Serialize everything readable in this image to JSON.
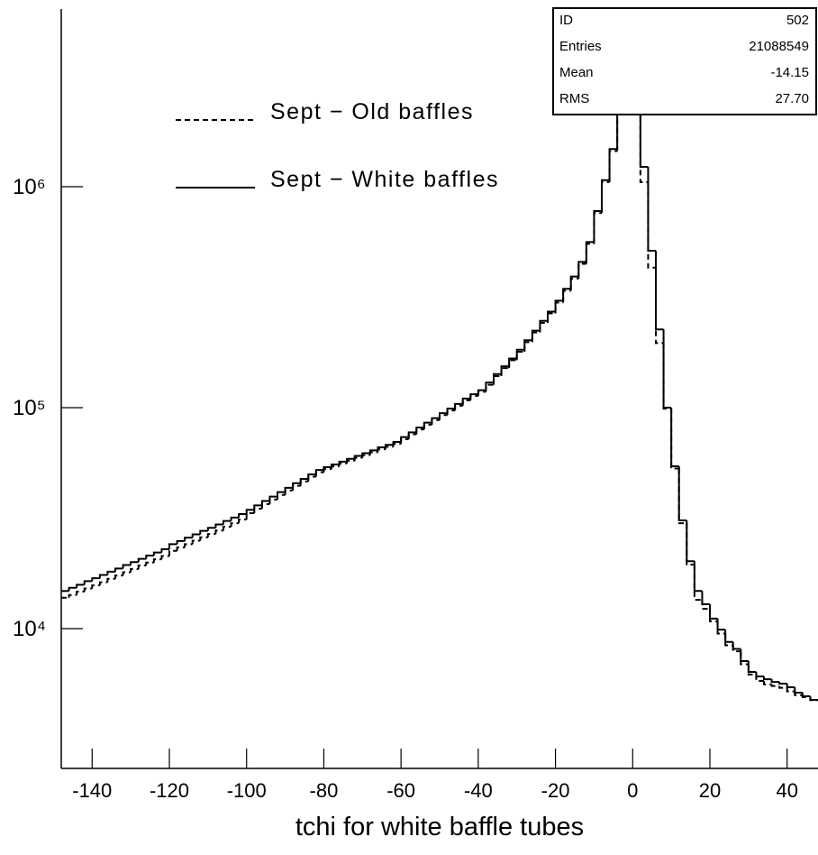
{
  "chart_data": {
    "type": "histogram",
    "x_label": "tchi for white baffle tubes",
    "bins": [
      -148,
      -146,
      -144,
      -142,
      -140,
      -138,
      -136,
      -134,
      -132,
      -130,
      -128,
      -126,
      -124,
      -122,
      -120,
      -118,
      -116,
      -114,
      -112,
      -110,
      -108,
      -106,
      -104,
      -102,
      -100,
      -98,
      -96,
      -94,
      -92,
      -90,
      -88,
      -86,
      -84,
      -82,
      -80,
      -78,
      -76,
      -74,
      -72,
      -70,
      -68,
      -66,
      -64,
      -62,
      -60,
      -58,
      -56,
      -54,
      -52,
      -50,
      -48,
      -46,
      -44,
      -42,
      -40,
      -38,
      -36,
      -34,
      -32,
      -30,
      -28,
      -26,
      -24,
      -22,
      -20,
      -18,
      -16,
      -14,
      -12,
      -10,
      -8,
      -6,
      -4,
      -2,
      0,
      2,
      4,
      6,
      8,
      10,
      12,
      14,
      16,
      18,
      20,
      22,
      24,
      26,
      28,
      30,
      32,
      34,
      36,
      38,
      40,
      42,
      44,
      46,
      48
    ],
    "series": [
      {
        "name": "Sept − Old baffles",
        "color": "#000000",
        "style": "dashed",
        "values": [
          13800,
          14200,
          14700,
          15200,
          15700,
          16200,
          16800,
          17400,
          18000,
          18600,
          19300,
          19900,
          20600,
          21300,
          22500,
          23300,
          24100,
          25000,
          25900,
          26800,
          27800,
          28900,
          30000,
          31200,
          33300,
          34900,
          36600,
          38400,
          40300,
          42200,
          44300,
          46400,
          48700,
          51000,
          52700,
          54200,
          55900,
          57500,
          59300,
          61000,
          62800,
          64800,
          66500,
          68600,
          72100,
          75800,
          79700,
          83800,
          87900,
          92500,
          97100,
          102000,
          108000,
          113000,
          118000,
          127000,
          139000,
          151000,
          164000,
          179000,
          198000,
          219000,
          242000,
          267000,
          299000,
          338000,
          384000,
          448000,
          551000,
          760000,
          1050000,
          1450000,
          2600000,
          3550000,
          2300000,
          1050000,
          430000,
          196000,
          99000,
          53000,
          30000,
          19500,
          13500,
          12300,
          10800,
          9500,
          8400,
          7900,
          6900,
          6200,
          5800,
          5600,
          5500,
          5400,
          5200,
          5000,
          4900,
          4750
        ]
      },
      {
        "name": "Sept − White baffles",
        "color": "#000000",
        "style": "solid",
        "values": [
          14800,
          15300,
          15800,
          16400,
          16900,
          17500,
          18100,
          18700,
          19400,
          20000,
          20700,
          21400,
          22100,
          22900,
          24100,
          24900,
          25800,
          26700,
          27700,
          28600,
          29600,
          30700,
          31800,
          33000,
          34500,
          36100,
          37800,
          39600,
          41500,
          43400,
          45500,
          47600,
          49900,
          52200,
          53800,
          55300,
          57000,
          58700,
          60500,
          62200,
          64100,
          66100,
          67900,
          70000,
          73600,
          77300,
          81300,
          85500,
          89700,
          94400,
          99100,
          104000,
          110000,
          115000,
          120000,
          130000,
          142000,
          154000,
          167000,
          183000,
          202000,
          223000,
          247000,
          272000,
          305000,
          345000,
          392000,
          457000,
          562000,
          776000,
          1070000,
          1480000,
          2330000,
          3240000,
          2330000,
          1230000,
          513000,
          226000,
          100000,
          54300,
          30900,
          20200,
          14800,
          12900,
          11100,
          9890,
          8710,
          8090,
          7130,
          6370,
          6080,
          5900,
          5740,
          5640,
          5430,
          5130,
          4940,
          4760
        ]
      }
    ],
    "xlim": [
      -148,
      48
    ],
    "xticks": [
      -140,
      -120,
      -100,
      -80,
      -60,
      -40,
      -20,
      0,
      20,
      40
    ],
    "ylim": [
      2330,
      6370000
    ],
    "yscale": "log",
    "yticks": [
      {
        "value": 10000,
        "label": "10⁴"
      },
      {
        "value": 100000,
        "label": "10⁵"
      },
      {
        "value": 1000000,
        "label": "10⁶"
      }
    ],
    "legend": "upper left",
    "stats": [
      {
        "label": "ID",
        "value": "502"
      },
      {
        "label": "Entries",
        "value": "21088549"
      },
      {
        "label": "Mean",
        "value": "-14.15"
      },
      {
        "label": "RMS",
        "value": "27.70"
      }
    ]
  }
}
